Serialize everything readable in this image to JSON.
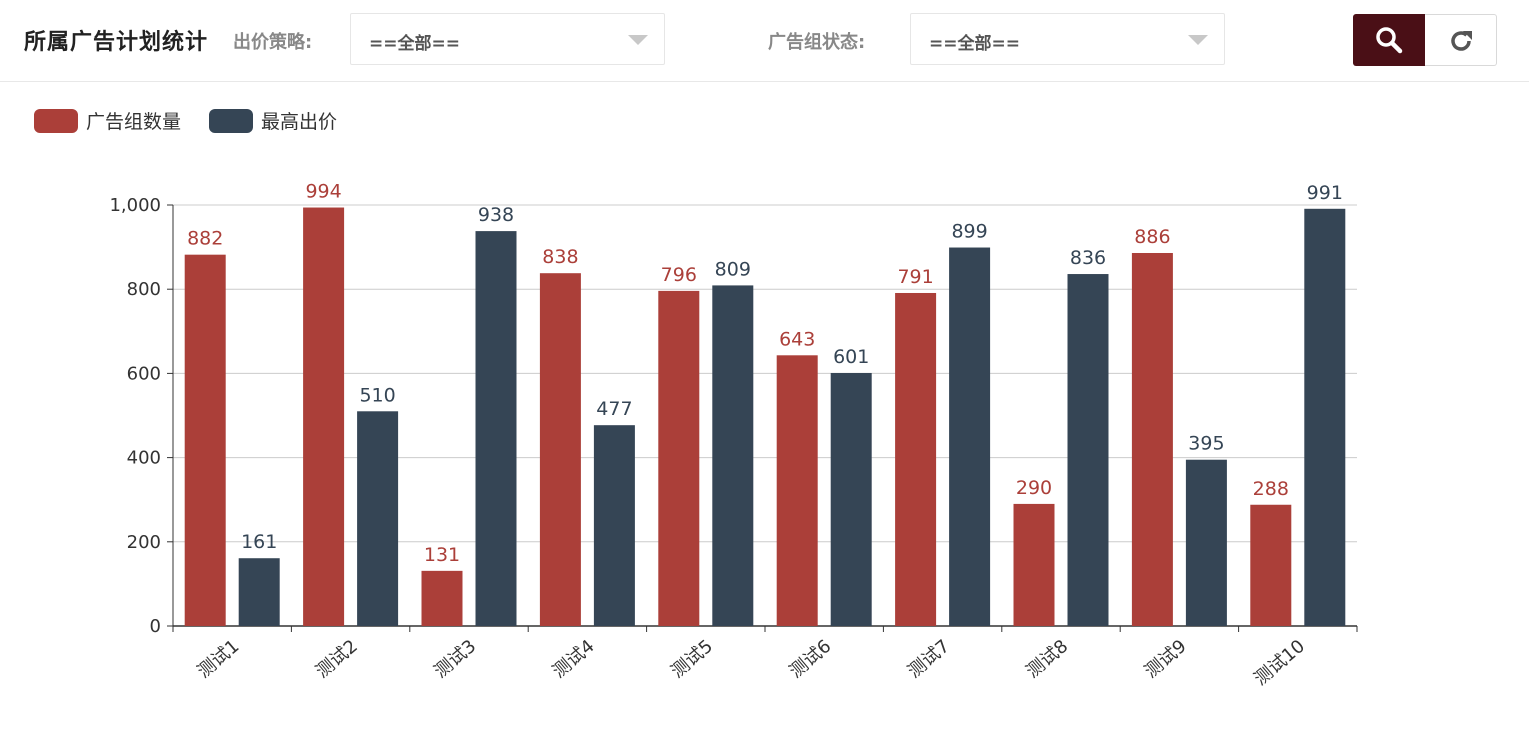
{
  "header": {
    "title": "所属广告计划统计",
    "filter1_label": "出价策略:",
    "filter1_value": "==全部==",
    "filter2_label": "广告组状态:",
    "filter2_value": "==全部==",
    "search_icon": "search-icon",
    "reset_icon": "refresh-icon"
  },
  "colors": {
    "series1": "#ab3f39",
    "series2": "#354555",
    "search_button_bg": "#4a0f16"
  },
  "chart_data": {
    "type": "bar",
    "categories": [
      "测试1",
      "测试2",
      "测试3",
      "测试4",
      "测试5",
      "测试6",
      "测试7",
      "测试8",
      "测试9",
      "测试10"
    ],
    "series": [
      {
        "name": "广告组数量",
        "values": [
          882,
          994,
          131,
          838,
          796,
          643,
          791,
          290,
          886,
          288
        ]
      },
      {
        "name": "最高出价",
        "values": [
          161,
          510,
          938,
          477,
          809,
          601,
          899,
          836,
          395,
          991
        ]
      }
    ],
    "yticks": [
      "0",
      "200",
      "400",
      "600",
      "800",
      "1,000"
    ],
    "ylim": [
      0,
      1000
    ],
    "grid": true,
    "legend_position": "top-left"
  }
}
